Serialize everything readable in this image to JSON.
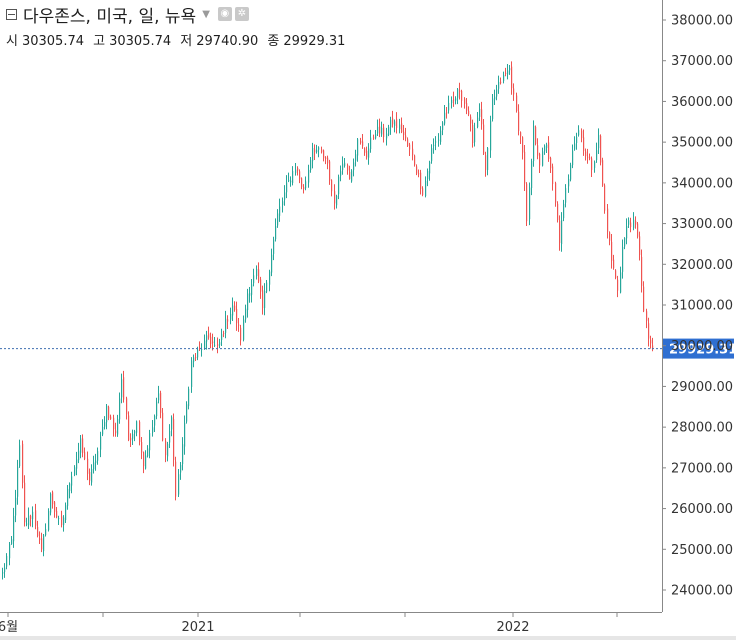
{
  "legend": {
    "title": "다우존스, 미국, 일, 뉴욕",
    "ohlc": [
      {
        "label": "시",
        "value": "30305.74"
      },
      {
        "label": "고",
        "value": "30305.74"
      },
      {
        "label": "저",
        "value": "29740.90"
      },
      {
        "label": "종",
        "value": "29929.31"
      }
    ]
  },
  "colors": {
    "up": "#26a69a",
    "down": "#ef5350",
    "price_line": "#3f6fb0",
    "price_tag": "#2f6fd1",
    "axis_text": "#333333",
    "grid_axis": "#888888"
  },
  "chart_data": {
    "type": "candlestick",
    "y_axis": {
      "ticks": [
        "24000.00",
        "25000.00",
        "26000.00",
        "27000.00",
        "28000.00",
        "29000.00",
        "30000.00",
        "31000.00",
        "32000.00",
        "33000.00",
        "34000.00",
        "35000.00",
        "36000.00",
        "37000.00",
        "38000.00"
      ],
      "range": [
        23600,
        38200
      ]
    },
    "x_axis": {
      "labels": [
        "6월",
        "2021",
        "2022"
      ]
    },
    "last_price": 29929.31,
    "last_price_label": "29929.31",
    "series_path": [
      [
        0,
        24400
      ],
      [
        4,
        25200
      ],
      [
        8,
        27500
      ],
      [
        10,
        25600
      ],
      [
        14,
        25900
      ],
      [
        18,
        24900
      ],
      [
        22,
        26300
      ],
      [
        27,
        25500
      ],
      [
        31,
        26700
      ],
      [
        36,
        27600
      ],
      [
        40,
        26700
      ],
      [
        44,
        27400
      ],
      [
        48,
        28500
      ],
      [
        52,
        27800
      ],
      [
        55,
        29200
      ],
      [
        58,
        27700
      ],
      [
        62,
        28100
      ],
      [
        65,
        27100
      ],
      [
        69,
        28000
      ],
      [
        72,
        28800
      ],
      [
        75,
        27300
      ],
      [
        78,
        28200
      ],
      [
        80,
        26300
      ],
      [
        84,
        28000
      ],
      [
        87,
        29600
      ],
      [
        91,
        29900
      ],
      [
        95,
        30200
      ],
      [
        99,
        29900
      ],
      [
        102,
        30400
      ],
      [
        106,
        31000
      ],
      [
        110,
        30200
      ],
      [
        113,
        31300
      ],
      [
        117,
        31800
      ],
      [
        120,
        30900
      ],
      [
        124,
        32300
      ],
      [
        127,
        33200
      ],
      [
        131,
        33900
      ],
      [
        135,
        34400
      ],
      [
        139,
        33800
      ],
      [
        143,
        34900
      ],
      [
        147,
        34700
      ],
      [
        150,
        34400
      ],
      [
        153,
        33500
      ],
      [
        157,
        34600
      ],
      [
        160,
        34200
      ],
      [
        164,
        35000
      ],
      [
        168,
        34700
      ],
      [
        172,
        35300
      ],
      [
        176,
        35200
      ],
      [
        180,
        35500
      ],
      [
        184,
        35300
      ],
      [
        187,
        34900
      ],
      [
        190,
        34500
      ],
      [
        194,
        33800
      ],
      [
        198,
        34800
      ],
      [
        201,
        35100
      ],
      [
        204,
        35700
      ],
      [
        208,
        36000
      ],
      [
        211,
        36300
      ],
      [
        214,
        35800
      ],
      [
        217,
        35100
      ],
      [
        220,
        35900
      ],
      [
        223,
        34200
      ],
      [
        226,
        36000
      ],
      [
        230,
        36500
      ],
      [
        234,
        36800
      ],
      [
        237,
        35700
      ],
      [
        240,
        34800
      ],
      [
        242,
        33000
      ],
      [
        245,
        35300
      ],
      [
        248,
        34500
      ],
      [
        251,
        35000
      ],
      [
        254,
        33900
      ],
      [
        257,
        32600
      ],
      [
        260,
        33800
      ],
      [
        263,
        34900
      ],
      [
        266,
        35300
      ],
      [
        269,
        34700
      ],
      [
        272,
        34400
      ],
      [
        275,
        35100
      ],
      [
        278,
        33300
      ],
      [
        281,
        32100
      ],
      [
        284,
        31400
      ],
      [
        286,
        32400
      ],
      [
        289,
        33100
      ],
      [
        292,
        32900
      ],
      [
        294,
        32300
      ],
      [
        296,
        30800
      ],
      [
        298,
        30200
      ],
      [
        300,
        29929
      ]
    ],
    "total_days": 300
  }
}
